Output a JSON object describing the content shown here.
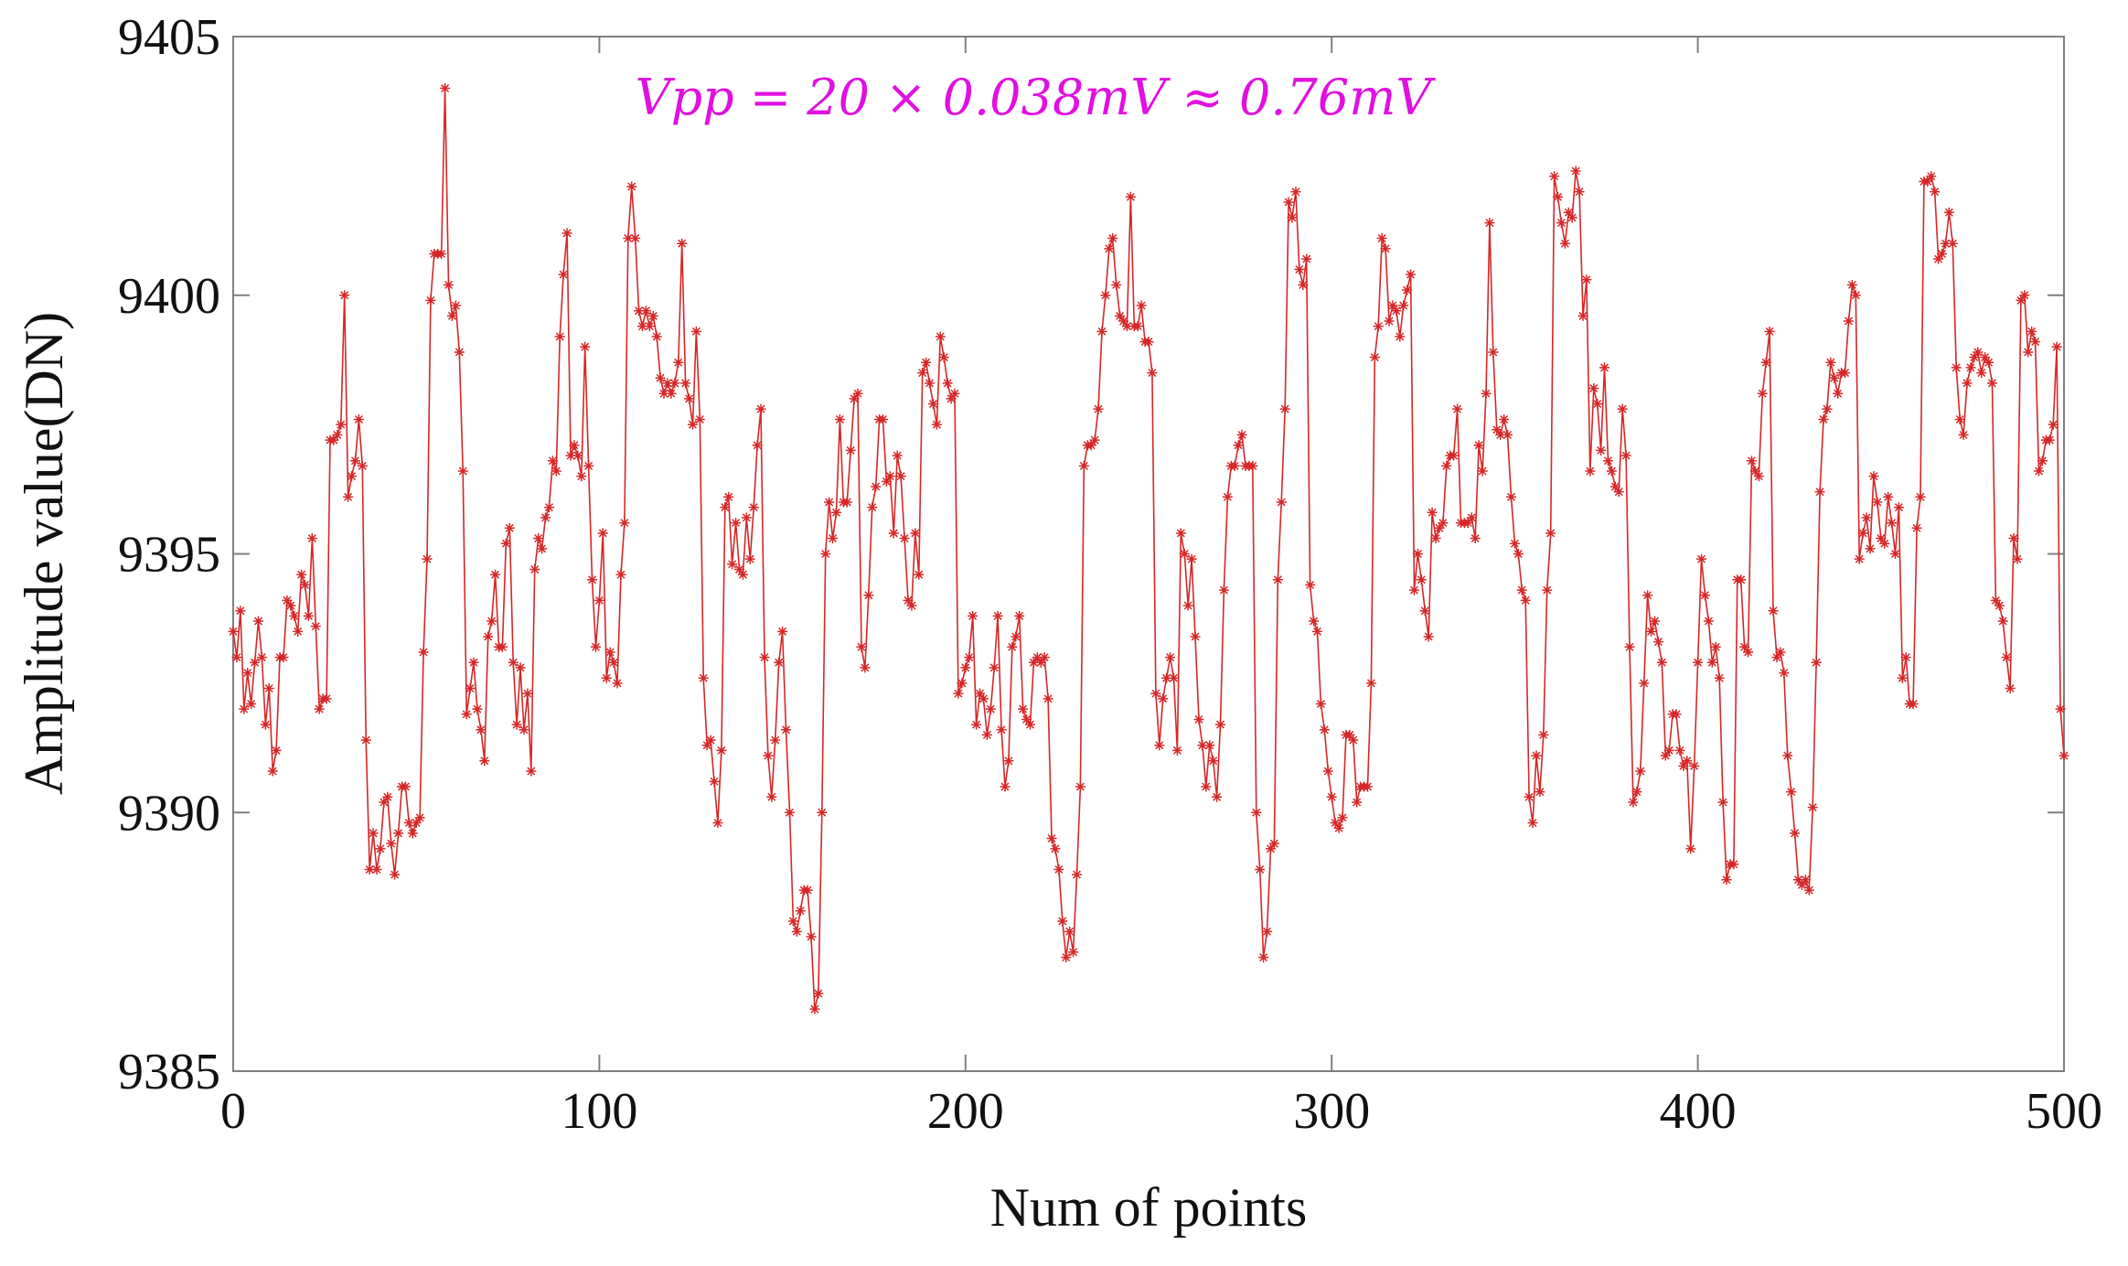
{
  "chart_data": {
    "type": "line",
    "title": "",
    "xlabel": "Num of points",
    "ylabel": "Amplitude value(DN)",
    "xlim": [
      0,
      500
    ],
    "ylim": [
      9385,
      9405
    ],
    "xticks": [
      0,
      100,
      200,
      300,
      400,
      500
    ],
    "yticks": [
      9385,
      9390,
      9395,
      9400,
      9405
    ],
    "xtick_labels": [
      "0",
      "100",
      "200",
      "300",
      "400",
      "500"
    ],
    "ytick_labels": [
      "9385",
      "9390",
      "9395",
      "9400",
      "9405"
    ],
    "grid": false,
    "annotation": "Vpp = 20 × 0.038mV ≈ 0.76mV",
    "series": [
      {
        "name": "Amplitude",
        "marker": "asterisk",
        "color": "#d62728",
        "y": [
          9393.5,
          9393.0,
          9393.9,
          9392.0,
          9392.7,
          9392.1,
          9392.9,
          9393.7,
          9393.0,
          9391.7,
          9392.4,
          9390.8,
          9391.2,
          9393.0,
          9393.0,
          9394.1,
          9394.0,
          9393.8,
          9393.5,
          9394.6,
          9394.4,
          9393.8,
          9395.3,
          9393.6,
          9392.0,
          9392.2,
          9392.2,
          9397.2,
          9397.2,
          9397.3,
          9397.5,
          9400.0,
          9396.1,
          9396.5,
          9396.8,
          9397.6,
          9396.7,
          9391.4,
          9388.9,
          9389.6,
          9388.9,
          9389.3,
          9390.2,
          9390.3,
          9389.4,
          9388.8,
          9389.6,
          9390.5,
          9390.5,
          9389.8,
          9389.6,
          9389.8,
          9389.9,
          9393.1,
          9394.9,
          9399.9,
          9400.8,
          9400.8,
          9400.8,
          9404.0,
          9400.2,
          9399.6,
          9399.8,
          9398.9,
          9396.6,
          9391.9,
          9392.4,
          9392.9,
          9392.0,
          9391.6,
          9391.0,
          9393.4,
          9393.7,
          9394.6,
          9393.2,
          9393.2,
          9395.2,
          9395.5,
          9392.9,
          9391.7,
          9392.8,
          9391.6,
          9392.3,
          9390.8,
          9394.7,
          9395.3,
          9395.1,
          9395.7,
          9395.9,
          9396.8,
          9396.6,
          9399.2,
          9400.4,
          9401.2,
          9396.9,
          9397.1,
          9396.9,
          9396.5,
          9399.0,
          9396.7,
          9394.5,
          9393.2,
          9394.1,
          9395.4,
          9392.6,
          9393.1,
          9392.9,
          9392.5,
          9394.6,
          9395.6,
          9401.1,
          9402.1,
          9401.1,
          9399.7,
          9399.4,
          9399.7,
          9399.4,
          9399.6,
          9399.2,
          9398.4,
          9398.1,
          9398.3,
          9398.1,
          9398.3,
          9398.7,
          9401.0,
          9398.3,
          9398.0,
          9397.5,
          9399.3,
          9397.6,
          9392.6,
          9391.3,
          9391.4,
          9390.6,
          9389.8,
          9391.2,
          9395.9,
          9396.1,
          9394.8,
          9395.6,
          9394.7,
          9394.6,
          9395.7,
          9394.9,
          9395.9,
          9397.1,
          9397.8,
          9393.0,
          9391.1,
          9390.3,
          9391.4,
          9392.9,
          9393.5,
          9391.6,
          9390.0,
          9387.9,
          9387.7,
          9388.1,
          9388.5,
          9388.5,
          9387.6,
          9386.2,
          9386.5,
          9390.0,
          9395.0,
          9396.0,
          9395.3,
          9395.8,
          9397.6,
          9396.0,
          9396.0,
          9397.0,
          9398.0,
          9398.1,
          9393.2,
          9392.8,
          9394.2,
          9395.9,
          9396.3,
          9397.6,
          9397.6,
          9396.4,
          9396.5,
          9395.4,
          9396.9,
          9396.5,
          9395.3,
          9394.1,
          9394.0,
          9395.4,
          9394.6,
          9398.5,
          9398.7,
          9398.3,
          9397.9,
          9397.5,
          9399.2,
          9398.8,
          9398.3,
          9398.0,
          9398.1,
          9392.3,
          9392.5,
          9392.8,
          9393.0,
          9393.8,
          9391.7,
          9392.3,
          9392.2,
          9391.5,
          9392.0,
          9392.8,
          9393.8,
          9391.6,
          9390.5,
          9391.0,
          9393.2,
          9393.4,
          9393.8,
          9392.0,
          9391.8,
          9391.7,
          9392.9,
          9393.0,
          9392.9,
          9393.0,
          9392.2,
          9389.5,
          9389.3,
          9388.9,
          9387.9,
          9387.2,
          9387.7,
          9387.3,
          9388.8,
          9390.5,
          9396.7,
          9397.1,
          9397.1,
          9397.2,
          9397.8,
          9399.3,
          9400.0,
          9400.9,
          9401.1,
          9400.2,
          9399.6,
          9399.5,
          9399.4,
          9401.9,
          9399.4,
          9399.4,
          9399.8,
          9399.1,
          9399.1,
          9398.5,
          9392.3,
          9391.3,
          9392.2,
          9392.6,
          9393.0,
          9392.6,
          9391.2,
          9395.4,
          9395.0,
          9394.0,
          9394.9,
          9393.4,
          9391.8,
          9391.3,
          9390.5,
          9391.3,
          9391.0,
          9390.3,
          9391.7,
          9394.3,
          9396.1,
          9396.7,
          9396.7,
          9397.1,
          9397.3,
          9396.7,
          9396.7,
          9396.7,
          9390.0,
          9388.9,
          9387.2,
          9387.7,
          9389.3,
          9389.4,
          9394.5,
          9396.0,
          9397.8,
          9401.8,
          9401.5,
          9402.0,
          9400.5,
          9400.2,
          9400.7,
          9394.4,
          9393.7,
          9393.5,
          9392.1,
          9391.6,
          9390.8,
          9390.3,
          9389.8,
          9389.7,
          9389.9,
          9391.5,
          9391.5,
          9391.4,
          9390.2,
          9390.5,
          9390.5,
          9390.5,
          9392.5,
          9398.8,
          9399.4,
          9401.1,
          9400.9,
          9399.5,
          9399.8,
          9399.7,
          9399.2,
          9399.8,
          9400.1,
          9400.4,
          9394.3,
          9395.0,
          9394.5,
          9393.9,
          9393.4,
          9395.8,
          9395.3,
          9395.5,
          9395.6,
          9396.7,
          9396.9,
          9396.9,
          9397.8,
          9395.6,
          9395.6,
          9395.6,
          9395.7,
          9395.3,
          9397.1,
          9396.6,
          9398.1,
          9401.4,
          9398.9,
          9397.4,
          9397.3,
          9397.6,
          9397.3,
          9396.1,
          9395.2,
          9395.0,
          9394.3,
          9394.1,
          9390.3,
          9389.8,
          9391.1,
          9390.4,
          9391.5,
          9394.3,
          9395.4,
          9402.3,
          9401.9,
          9401.4,
          9401.0,
          9401.6,
          9401.5,
          9402.4,
          9402.0,
          9399.6,
          9400.3,
          9396.6,
          9398.2,
          9397.9,
          9397.0,
          9398.6,
          9396.8,
          9396.6,
          9396.3,
          9396.2,
          9397.8,
          9396.9,
          9393.2,
          9390.2,
          9390.4,
          9390.8,
          9392.5,
          9394.2,
          9393.5,
          9393.7,
          9393.3,
          9392.9,
          9391.1,
          9391.2,
          9391.9,
          9391.9,
          9391.2,
          9390.9,
          9391.0,
          9389.3,
          9390.9,
          9392.9,
          9394.9,
          9394.2,
          9393.7,
          9392.9,
          9393.2,
          9392.6,
          9390.2,
          9388.7,
          9389.0,
          9389.0,
          9394.5,
          9394.5,
          9393.2,
          9393.1,
          9396.8,
          9396.6,
          9396.5,
          9398.1,
          9398.7,
          9399.3,
          9393.9,
          9393.0,
          9393.1,
          9392.7,
          9391.1,
          9390.4,
          9389.6,
          9388.7,
          9388.6,
          9388.7,
          9388.5,
          9390.1,
          9392.9,
          9396.2,
          9397.6,
          9397.8,
          9398.7,
          9398.4,
          9398.1,
          9398.5,
          9398.5,
          9399.5,
          9400.2,
          9400.0,
          9394.9,
          9395.4,
          9395.7,
          9395.1,
          9396.5,
          9396.0,
          9395.3,
          9395.2,
          9396.1,
          9395.6,
          9395.0,
          9395.9,
          9392.6,
          9393.0,
          9392.1,
          9392.1,
          9395.5,
          9396.1,
          9402.2,
          9402.2,
          9402.3,
          9402.0,
          9400.7,
          9400.8,
          9401.0,
          9401.6,
          9401.0,
          9398.6,
          9397.6,
          9397.3,
          9398.3,
          9398.6,
          9398.8,
          9398.9,
          9398.5,
          9398.8,
          9398.7,
          9398.3,
          9394.1,
          9394.0,
          9393.7,
          9393.0,
          9392.4,
          9395.3,
          9394.9,
          9399.9,
          9400.0,
          9398.9,
          9399.3,
          9399.1,
          9396.6,
          9396.8,
          9397.2,
          9397.2,
          9397.5,
          9399.0,
          9392.0,
          9391.1
        ]
      }
    ]
  }
}
